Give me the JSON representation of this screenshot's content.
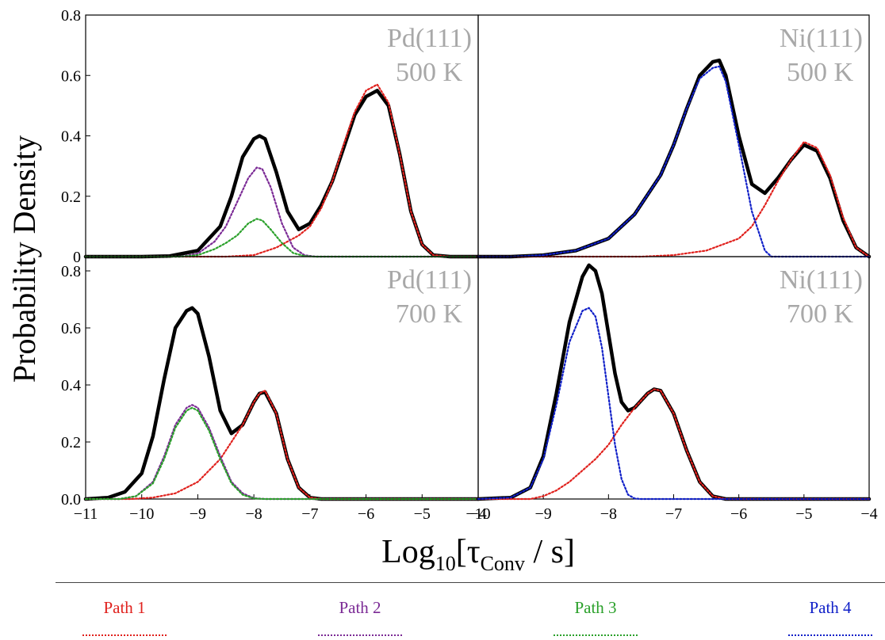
{
  "chart_data": {
    "type": "line",
    "ylabel": "Probability Density",
    "xlabel_main": "Log",
    "xlabel_sub": "10",
    "xlabel_bracket_open": "[τ",
    "xlabel_tau_sub": "Conv",
    "xlabel_tail": " / s]",
    "panels": [
      {
        "id": "pd-500",
        "label_line1": "Pd(111)",
        "label_line2": "500 K",
        "xlim": [
          -11,
          -4
        ],
        "ylim": [
          0,
          0.8
        ],
        "yticks": [
          "0.8",
          "0.6",
          "0.4",
          "0.2",
          "0"
        ],
        "xticks": [],
        "series": [
          {
            "name": "Total",
            "color": "#000000",
            "style": "solid",
            "x": [
              -11,
              -10,
              -9.5,
              -9,
              -8.6,
              -8.4,
              -8.2,
              -8.0,
              -7.9,
              -7.8,
              -7.6,
              -7.4,
              -7.2,
              -7.0,
              -6.8,
              -6.6,
              -6.4,
              -6.2,
              -6.0,
              -5.8,
              -5.6,
              -5.4,
              -5.2,
              -5.0,
              -4.8,
              -4.5,
              -4
            ],
            "y": [
              0,
              0,
              0.002,
              0.02,
              0.1,
              0.2,
              0.33,
              0.39,
              0.4,
              0.39,
              0.28,
              0.15,
              0.09,
              0.11,
              0.17,
              0.25,
              0.36,
              0.47,
              0.53,
              0.55,
              0.5,
              0.34,
              0.15,
              0.04,
              0.005,
              0,
              0
            ]
          },
          {
            "name": "Path 1",
            "color": "#e0211d",
            "style": "dotted",
            "x": [
              -11,
              -8.5,
              -8,
              -7.6,
              -7.2,
              -7.0,
              -6.8,
              -6.6,
              -6.4,
              -6.2,
              -6.0,
              -5.8,
              -5.6,
              -5.4,
              -5.2,
              -5.0,
              -4.8,
              -4.5,
              -4
            ],
            "y": [
              0,
              0,
              0.005,
              0.03,
              0.07,
              0.1,
              0.16,
              0.25,
              0.37,
              0.48,
              0.55,
              0.57,
              0.51,
              0.34,
              0.15,
              0.04,
              0.005,
              0,
              0
            ]
          },
          {
            "name": "Path 2",
            "color": "#7b2a95",
            "style": "dotted",
            "x": [
              -11,
              -9.3,
              -9.0,
              -8.7,
              -8.5,
              -8.3,
              -8.1,
              -7.95,
              -7.85,
              -7.7,
              -7.5,
              -7.3,
              -7.1,
              -6.9,
              -4
            ],
            "y": [
              0,
              0,
              0.01,
              0.05,
              0.1,
              0.18,
              0.26,
              0.295,
              0.29,
              0.23,
              0.11,
              0.03,
              0.005,
              0,
              0
            ]
          },
          {
            "name": "Path 3",
            "color": "#2aa02a",
            "style": "dotted",
            "x": [
              -11,
              -9.3,
              -9.0,
              -8.7,
              -8.5,
              -8.3,
              -8.1,
              -7.95,
              -7.85,
              -7.7,
              -7.5,
              -7.3,
              -7.1,
              -6.9,
              -4
            ],
            "y": [
              0,
              0,
              0.005,
              0.025,
              0.045,
              0.07,
              0.11,
              0.125,
              0.12,
              0.09,
              0.045,
              0.012,
              0.002,
              0,
              0
            ]
          }
        ]
      },
      {
        "id": "ni-500",
        "label_line1": "Ni(111)",
        "label_line2": "500 K",
        "xlim": [
          -10,
          -4
        ],
        "ylim": [
          0,
          0.8
        ],
        "yticks": [],
        "xticks": [],
        "series": [
          {
            "name": "Total",
            "color": "#000000",
            "style": "solid",
            "x": [
              -10,
              -9.5,
              -9,
              -8.5,
              -8.0,
              -7.6,
              -7.2,
              -7.0,
              -6.8,
              -6.6,
              -6.4,
              -6.3,
              -6.2,
              -6.0,
              -5.8,
              -5.6,
              -5.4,
              -5.2,
              -5.0,
              -4.8,
              -4.6,
              -4.4,
              -4.2,
              -4
            ],
            "y": [
              0,
              0,
              0.005,
              0.02,
              0.06,
              0.14,
              0.27,
              0.37,
              0.49,
              0.6,
              0.645,
              0.65,
              0.6,
              0.4,
              0.24,
              0.21,
              0.26,
              0.32,
              0.37,
              0.35,
              0.26,
              0.12,
              0.03,
              0
            ]
          },
          {
            "name": "Path 1",
            "color": "#e0211d",
            "style": "dotted",
            "x": [
              -10,
              -7.5,
              -7.0,
              -6.5,
              -6.0,
              -5.8,
              -5.6,
              -5.4,
              -5.2,
              -5.0,
              -4.8,
              -4.6,
              -4.4,
              -4.2,
              -4
            ],
            "y": [
              0,
              0,
              0.005,
              0.02,
              0.06,
              0.1,
              0.17,
              0.25,
              0.32,
              0.38,
              0.36,
              0.27,
              0.13,
              0.03,
              0
            ]
          },
          {
            "name": "Path 4",
            "color": "#1020c8",
            "style": "dotted",
            "x": [
              -10,
              -9.5,
              -9,
              -8.5,
              -8.0,
              -7.6,
              -7.2,
              -7.0,
              -6.8,
              -6.6,
              -6.4,
              -6.3,
              -6.2,
              -6.0,
              -5.8,
              -5.6,
              -5.5,
              -4
            ],
            "y": [
              0,
              0,
              0.005,
              0.02,
              0.06,
              0.14,
              0.27,
              0.37,
              0.49,
              0.59,
              0.625,
              0.63,
              0.58,
              0.37,
              0.15,
              0.02,
              0,
              0
            ]
          }
        ]
      },
      {
        "id": "pd-700",
        "label_line1": "Pd(111)",
        "label_line2": "700 K",
        "xlim": [
          -11,
          -4
        ],
        "ylim": [
          0,
          0.85
        ],
        "yticks": [
          "0.8",
          "0.6",
          "0.4",
          "0.2",
          "0.0"
        ],
        "xticks": [
          "−11",
          "−10",
          "−9",
          "−8",
          "−7",
          "−6",
          "−5",
          "−4"
        ],
        "series": [
          {
            "name": "Total",
            "color": "#000000",
            "style": "solid",
            "x": [
              -11,
              -10.6,
              -10.3,
              -10.0,
              -9.8,
              -9.6,
              -9.4,
              -9.2,
              -9.1,
              -9.0,
              -8.8,
              -8.6,
              -8.4,
              -8.2,
              -8.0,
              -7.9,
              -7.8,
              -7.6,
              -7.4,
              -7.2,
              -7.0,
              -6.8,
              -4
            ],
            "y": [
              0,
              0.005,
              0.025,
              0.09,
              0.22,
              0.42,
              0.6,
              0.66,
              0.67,
              0.65,
              0.5,
              0.31,
              0.23,
              0.26,
              0.34,
              0.37,
              0.375,
              0.3,
              0.14,
              0.04,
              0.005,
              0,
              0
            ]
          },
          {
            "name": "Path 1",
            "color": "#e0211d",
            "style": "dotted",
            "x": [
              -11,
              -10.2,
              -9.8,
              -9.4,
              -9.0,
              -8.6,
              -8.4,
              -8.2,
              -8.0,
              -7.9,
              -7.8,
              -7.6,
              -7.4,
              -7.2,
              -7.0,
              -6.8,
              -4
            ],
            "y": [
              0,
              0,
              0.005,
              0.02,
              0.06,
              0.14,
              0.2,
              0.26,
              0.34,
              0.37,
              0.38,
              0.3,
              0.14,
              0.04,
              0.005,
              0,
              0
            ]
          },
          {
            "name": "Path 2",
            "color": "#7b2a95",
            "style": "dotted",
            "x": [
              -11,
              -10.4,
              -10.1,
              -9.8,
              -9.6,
              -9.4,
              -9.2,
              -9.1,
              -9.0,
              -8.8,
              -8.6,
              -8.4,
              -8.2,
              -8.0,
              -7.8,
              -4
            ],
            "y": [
              0,
              0,
              0.01,
              0.06,
              0.15,
              0.26,
              0.32,
              0.33,
              0.32,
              0.25,
              0.15,
              0.06,
              0.02,
              0.003,
              0,
              0
            ]
          },
          {
            "name": "Path 3",
            "color": "#2aa02a",
            "style": "dotted",
            "x": [
              -11,
              -10.4,
              -10.1,
              -9.8,
              -9.6,
              -9.4,
              -9.2,
              -9.1,
              -9.0,
              -8.8,
              -8.6,
              -8.4,
              -8.2,
              -8.0,
              -7.8,
              -4
            ],
            "y": [
              0,
              0,
              0.01,
              0.055,
              0.14,
              0.25,
              0.31,
              0.32,
              0.31,
              0.24,
              0.14,
              0.055,
              0.015,
              0.002,
              0,
              0
            ]
          }
        ]
      },
      {
        "id": "ni-700",
        "label_line1": "Ni(111)",
        "label_line2": "700 K",
        "xlim": [
          -10,
          -4
        ],
        "ylim": [
          0,
          0.85
        ],
        "yticks": [],
        "xticks": [
          "−10",
          "−9",
          "−8",
          "−7",
          "−6",
          "−5",
          "−4"
        ],
        "series": [
          {
            "name": "Total",
            "color": "#000000",
            "style": "solid",
            "x": [
              -10,
              -9.5,
              -9.2,
              -9.0,
              -8.8,
              -8.6,
              -8.4,
              -8.3,
              -8.2,
              -8.1,
              -8.0,
              -7.9,
              -7.8,
              -7.7,
              -7.6,
              -7.4,
              -7.3,
              -7.2,
              -7.0,
              -6.8,
              -6.6,
              -6.4,
              -6.2,
              -4
            ],
            "y": [
              0,
              0.005,
              0.04,
              0.15,
              0.37,
              0.62,
              0.78,
              0.82,
              0.8,
              0.72,
              0.58,
              0.44,
              0.34,
              0.31,
              0.32,
              0.37,
              0.385,
              0.38,
              0.3,
              0.17,
              0.06,
              0.01,
              0,
              0
            ]
          },
          {
            "name": "Path 1",
            "color": "#e0211d",
            "style": "dotted",
            "x": [
              -10,
              -9.2,
              -9.0,
              -8.8,
              -8.6,
              -8.4,
              -8.2,
              -8.0,
              -7.8,
              -7.6,
              -7.4,
              -7.3,
              -7.2,
              -7.0,
              -6.8,
              -6.6,
              -6.4,
              -6.2,
              -4
            ],
            "y": [
              0,
              0,
              0.01,
              0.03,
              0.06,
              0.1,
              0.14,
              0.19,
              0.26,
              0.32,
              0.37,
              0.385,
              0.38,
              0.3,
              0.17,
              0.06,
              0.01,
              0,
              0
            ]
          },
          {
            "name": "Path 4",
            "color": "#1020c8",
            "style": "dotted",
            "x": [
              -10,
              -9.5,
              -9.2,
              -9.0,
              -8.8,
              -8.6,
              -8.4,
              -8.3,
              -8.2,
              -8.1,
              -8.0,
              -7.9,
              -7.8,
              -7.7,
              -7.6,
              -7.5,
              -4
            ],
            "y": [
              0,
              0.005,
              0.04,
              0.14,
              0.33,
              0.55,
              0.66,
              0.67,
              0.64,
              0.53,
              0.36,
              0.19,
              0.07,
              0.015,
              0.002,
              0,
              0
            ]
          }
        ]
      }
    ]
  },
  "legend": {
    "items": [
      {
        "label": "Path 1",
        "color": "#e0211d"
      },
      {
        "label": "Path 2",
        "color": "#7b2a95"
      },
      {
        "label": "Path 3",
        "color": "#2aa02a"
      },
      {
        "label": "Path 4",
        "color": "#1020c8"
      }
    ]
  },
  "colors": {
    "panel_label": "#a8a8a8",
    "axis": "#000000"
  }
}
